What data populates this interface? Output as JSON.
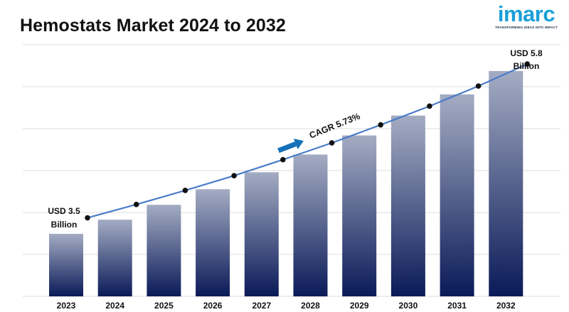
{
  "header": {
    "title": "Hemostats Market 2024 to 2032"
  },
  "logo": {
    "word": "imarc",
    "tagline": "TRANSFORMING IDEAS INTO IMPACT",
    "color": "#1aa0d8"
  },
  "chart_data": {
    "type": "bar",
    "title": "Hemostats Market 2024 to 2032",
    "categories": [
      "2023",
      "2024",
      "2025",
      "2026",
      "2027",
      "2028",
      "2029",
      "2030",
      "2031",
      "2032"
    ],
    "values": [
      3.5,
      3.7,
      3.91,
      4.13,
      4.37,
      4.62,
      4.89,
      5.17,
      5.47,
      5.8
    ],
    "trend_values": [
      3.5,
      3.7,
      3.91,
      4.13,
      4.37,
      4.62,
      4.89,
      5.17,
      5.47,
      5.8
    ],
    "unit": "USD Billion",
    "grid": true,
    "annotations": {
      "start": [
        "USD 3.5",
        "Billion"
      ],
      "end": [
        "USD 5.8",
        "Billion"
      ],
      "cagr": "CAGR 5.73%"
    },
    "colors": {
      "bar_top": "#a4acc3",
      "bar_bottom": "#0a1a58",
      "line": "#4a7bc8",
      "marker": "#111111",
      "arrow": "#1370b8",
      "grid": "#dcdcdc"
    }
  }
}
